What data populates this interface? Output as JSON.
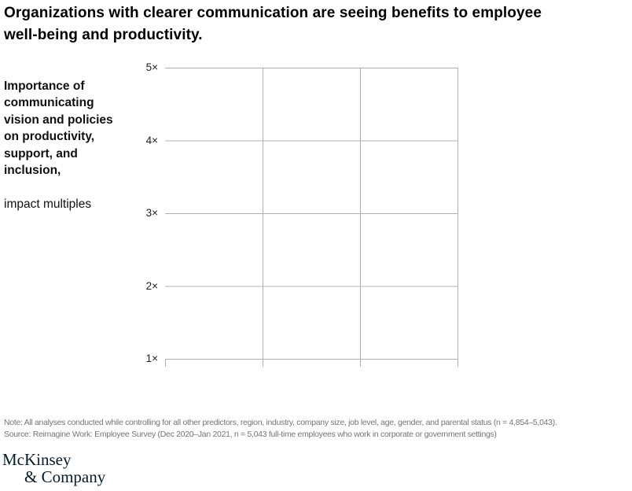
{
  "title": "Organizations with clearer communication are seeing benefits to employee\nwell-being and productivity.",
  "chart": {
    "side_label_bold": "Importance of\ncommunicating\nvision and policies\non productivity,\nsupport, and\ninclusion,",
    "side_label_unit": "impact multiples"
  },
  "chart_data": {
    "type": "bar",
    "title": "Importance of communicating vision and policies on productivity, support, and inclusion, impact multiples",
    "xlabel": "",
    "ylabel": "impact multiples",
    "y_axis": {
      "tick_labels": [
        "5×",
        "4×",
        "3×",
        "2×",
        "1×"
      ],
      "range": [
        1,
        5
      ]
    },
    "x_sections": 3,
    "categories": [],
    "series": [],
    "grid": true,
    "legend": false
  },
  "footer": {
    "note": "Note: All analyses conducted while controlling for all other predictors, region, industry, company size, job level, age, gender, and parental status (n = 4,854–5,043).",
    "source": "Source: Reimagine Work: Employee Survey (Dec 2020–Jan 2021, n = 5,043 full-time employees who work in corporate or government settings)"
  },
  "logo": {
    "line1": "McKinsey",
    "line2": "& Company"
  },
  "colors": {
    "gridline": "#b0b0b0",
    "title_text": "#000000",
    "axis_text": "#1f1f1f",
    "note_text": "#757575",
    "logo": "#051c2c",
    "background": "#ffffff"
  }
}
